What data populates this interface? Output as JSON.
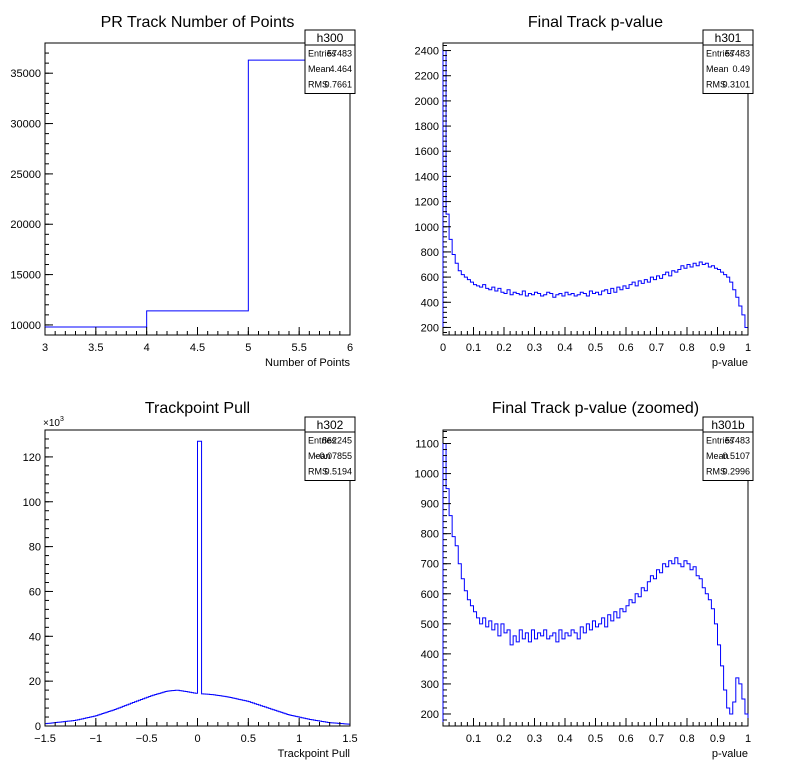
{
  "chart_data": [
    {
      "id": "h300",
      "type": "histogram",
      "title": "PR Track Number of Points",
      "xlabel": "Number of Points",
      "ylabel": "",
      "xlim": [
        3,
        6
      ],
      "ylim": [
        9000,
        38000
      ],
      "x_ticks": [
        "3",
        "3.5",
        "4",
        "4.5",
        "5",
        "5.5",
        "6"
      ],
      "y_ticks": [
        "10000",
        "15000",
        "20000",
        "25000",
        "30000",
        "35000"
      ],
      "y_multiplier": "",
      "line_color": "#0000ff",
      "bins": {
        "edges": [
          3,
          4,
          5,
          6
        ],
        "values": [
          9800,
          11400,
          36300
        ]
      },
      "stats": {
        "name": "h300",
        "rows": [
          {
            "label": "Entries",
            "value": "57483"
          },
          {
            "label": "Mean",
            "value": "4.464"
          },
          {
            "label": "RMS",
            "value": "0.7661"
          }
        ]
      }
    },
    {
      "id": "h301",
      "type": "histogram",
      "title": "Final Track p-value",
      "xlabel": "p-value",
      "ylabel": "",
      "xlim": [
        0,
        1
      ],
      "ylim": [
        140,
        2460
      ],
      "x_ticks": [
        "0",
        "0.1",
        "0.2",
        "0.3",
        "0.4",
        "0.5",
        "0.6",
        "0.7",
        "0.8",
        "0.9",
        "1"
      ],
      "y_ticks": [
        "200",
        "400",
        "600",
        "800",
        "1000",
        "1200",
        "1400",
        "1600",
        "1800",
        "2000",
        "2200",
        "2400"
      ],
      "y_multiplier": "",
      "line_color": "#0000ff",
      "bins": {
        "edges_range": [
          0,
          1
        ],
        "n_bins": 100,
        "values": [
          2400,
          1100,
          900,
          780,
          710,
          650,
          620,
          600,
          580,
          560,
          540,
          530,
          520,
          540,
          510,
          500,
          520,
          490,
          510,
          480,
          470,
          500,
          460,
          480,
          470,
          460,
          490,
          450,
          470,
          460,
          480,
          470,
          450,
          460,
          480,
          470,
          440,
          460,
          470,
          450,
          480,
          460,
          470,
          450,
          460,
          480,
          470,
          450,
          490,
          470,
          480,
          460,
          490,
          500,
          470,
          510,
          480,
          520,
          500,
          530,
          510,
          540,
          560,
          530,
          570,
          550,
          580,
          560,
          600,
          580,
          610,
          590,
          620,
          640,
          610,
          650,
          640,
          660,
          690,
          670,
          700,
          680,
          710,
          690,
          720,
          700,
          710,
          680,
          690,
          670,
          660,
          640,
          620,
          600,
          560,
          500,
          440,
          370,
          300,
          200
        ]
      },
      "stats": {
        "name": "h301",
        "rows": [
          {
            "label": "Entries",
            "value": "57483"
          },
          {
            "label": "Mean",
            "value": "0.49"
          },
          {
            "label": "RMS",
            "value": "0.3101"
          }
        ]
      }
    },
    {
      "id": "h302",
      "type": "histogram",
      "title": "Trackpoint Pull",
      "xlabel": "Trackpoint Pull",
      "ylabel": "",
      "xlim": [
        -1.5,
        1.5
      ],
      "ylim": [
        0,
        132
      ],
      "x_ticks": [
        "−1.5",
        "−1",
        "−0.5",
        "0",
        "0.5",
        "1",
        "1.5"
      ],
      "y_ticks": [
        "0",
        "20",
        "40",
        "60",
        "80",
        "100",
        "120"
      ],
      "y_multiplier": "×10",
      "y_multiplier_exp": "3",
      "line_color": "#0000ff",
      "curve": {
        "x": [
          -1.5,
          -1.2,
          -1.0,
          -0.8,
          -0.6,
          -0.45,
          -0.3,
          -0.2,
          -0.1,
          0.0,
          0.15,
          0.3,
          0.5,
          0.7,
          0.9,
          1.1,
          1.3,
          1.5
        ],
        "y": [
          1,
          2.5,
          4.5,
          7.5,
          11,
          13.5,
          15.5,
          16,
          15.3,
          14.5,
          14,
          13,
          11,
          8,
          5,
          3,
          1.5,
          0.8
        ]
      },
      "spike": {
        "x_from": 0.0,
        "x_to": 0.04,
        "value": 127
      },
      "stats": {
        "name": "h302",
        "rows": [
          {
            "label": "Entries",
            "value": "862245"
          },
          {
            "label": "Mean",
            "value": "−0.07855"
          },
          {
            "label": "RMS",
            "value": "0.5194"
          }
        ]
      }
    },
    {
      "id": "h301b",
      "type": "histogram",
      "title": "Final Track p-value (zoomed)",
      "xlabel": "p-value",
      "ylabel": "",
      "xlim": [
        0,
        1
      ],
      "ylim": [
        160,
        1145
      ],
      "x_ticks": [
        "0.1",
        "0.2",
        "0.3",
        "0.4",
        "0.5",
        "0.6",
        "0.7",
        "0.8",
        "0.9",
        "1"
      ],
      "y_ticks": [
        "200",
        "300",
        "400",
        "500",
        "600",
        "700",
        "800",
        "900",
        "1000",
        "1100"
      ],
      "y_multiplier": "",
      "line_color": "#0000ff",
      "bins": {
        "edges_range": [
          0,
          1
        ],
        "n_bins": 100,
        "values": [
          1100,
          950,
          860,
          790,
          760,
          700,
          650,
          610,
          580,
          560,
          540,
          520,
          500,
          520,
          490,
          510,
          480,
          500,
          460,
          500,
          470,
          480,
          430,
          460,
          440,
          480,
          450,
          470,
          440,
          480,
          450,
          470,
          460,
          480,
          450,
          460,
          470,
          440,
          480,
          450,
          470,
          460,
          480,
          470,
          450,
          490,
          470,
          500,
          480,
          510,
          490,
          500,
          520,
          490,
          530,
          510,
          540,
          520,
          550,
          540,
          560,
          580,
          570,
          600,
          590,
          620,
          610,
          640,
          660,
          650,
          680,
          670,
          700,
          690,
          710,
          700,
          720,
          700,
          690,
          710,
          700,
          680,
          690,
          660,
          650,
          620,
          600,
          580,
          550,
          500,
          430,
          360,
          280,
          220,
          200,
          240,
          320,
          300,
          250,
          200
        ]
      },
      "stats": {
        "name": "h301b",
        "rows": [
          {
            "label": "Entries",
            "value": "57483"
          },
          {
            "label": "Mean",
            "value": "0.5107"
          },
          {
            "label": "RMS",
            "value": "0.2996"
          }
        ]
      }
    }
  ]
}
